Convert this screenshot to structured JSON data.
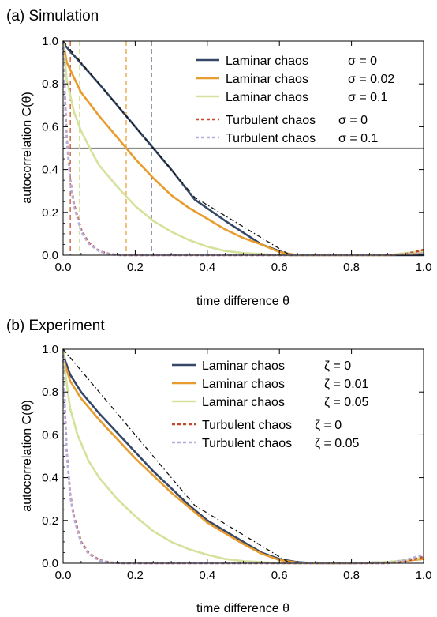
{
  "chart_data": [
    {
      "type": "line",
      "title": "(a) Simulation",
      "xlabel": "time difference θ",
      "ylabel": "autocorrelation C(θ)",
      "xlim": [
        0,
        1
      ],
      "ylim": [
        0,
        1
      ],
      "x_ticks": [
        "0.0",
        "0.2",
        "0.4",
        "0.6",
        "0.8",
        "1.0"
      ],
      "y_ticks": [
        "0.0",
        "0.2",
        "0.4",
        "0.6",
        "0.8",
        "1.0"
      ],
      "param_symbol": "σ",
      "hline": 0.5,
      "vlines": [
        {
          "x": 0.02,
          "color": "#c1441e"
        },
        {
          "x": 0.045,
          "color": "#d6e29a"
        },
        {
          "x": 0.175,
          "color": "#e69a28"
        },
        {
          "x": 0.245,
          "color": "#3a4a6b"
        }
      ],
      "reference": {
        "x": [
          0,
          0.365,
          0.63
        ],
        "y": [
          1,
          0.27,
          0
        ]
      },
      "series": [
        {
          "name": "Laminar chaos",
          "param": "σ = 0",
          "color": "#354869",
          "dash": "",
          "x": [
            0,
            0.1,
            0.2,
            0.3,
            0.365,
            0.45,
            0.55,
            0.63,
            0.7,
            0.8,
            0.9,
            1.0
          ],
          "y": [
            0.99,
            0.8,
            0.6,
            0.4,
            0.26,
            0.16,
            0.05,
            0.0,
            0.0,
            0.0,
            0.0,
            0.0
          ]
        },
        {
          "name": "Laminar chaos",
          "param": "σ = 0.02",
          "color": "#e89c2d",
          "dash": "",
          "x": [
            0,
            0.01,
            0.05,
            0.1,
            0.15,
            0.2,
            0.25,
            0.3,
            0.35,
            0.4,
            0.45,
            0.5,
            0.55,
            0.6,
            0.65,
            0.7,
            0.8,
            0.9,
            1.0
          ],
          "y": [
            1.0,
            0.9,
            0.76,
            0.65,
            0.55,
            0.45,
            0.36,
            0.28,
            0.22,
            0.17,
            0.12,
            0.08,
            0.05,
            0.015,
            0.0,
            0.0,
            0.0,
            0.0,
            0.01
          ]
        },
        {
          "name": "Laminar chaos",
          "param": "σ = 0.1",
          "color": "#d4e29b",
          "dash": "",
          "x": [
            0,
            0.01,
            0.03,
            0.05,
            0.08,
            0.1,
            0.15,
            0.2,
            0.25,
            0.3,
            0.35,
            0.4,
            0.45,
            0.5,
            0.55,
            0.6,
            0.7,
            0.8,
            0.9,
            1.0
          ],
          "y": [
            1.0,
            0.82,
            0.67,
            0.58,
            0.48,
            0.42,
            0.32,
            0.23,
            0.16,
            0.11,
            0.07,
            0.04,
            0.02,
            0.01,
            0.005,
            0.0,
            0.0,
            0.0,
            0.0,
            0.02
          ]
        },
        {
          "name": "Turbulent chaos",
          "param": "σ = 0",
          "color": "#c8462a",
          "dash": "4,3",
          "x": [
            0,
            0.005,
            0.01,
            0.02,
            0.03,
            0.05,
            0.07,
            0.1,
            0.13,
            0.16,
            0.2,
            0.3,
            0.5,
            0.7,
            0.9,
            0.95,
            1.0
          ],
          "y": [
            1.0,
            0.75,
            0.55,
            0.35,
            0.24,
            0.12,
            0.06,
            0.02,
            0.005,
            0.0,
            0.0,
            0.0,
            0.0,
            0.0,
            0.0,
            0.005,
            0.025
          ]
        },
        {
          "name": "Turbulent chaos",
          "param": "σ = 0.1",
          "color": "#b3aee0",
          "dash": "4,3",
          "x": [
            0,
            0.005,
            0.01,
            0.02,
            0.03,
            0.05,
            0.07,
            0.1,
            0.13,
            0.16,
            0.2,
            0.3,
            0.5,
            0.7,
            0.9,
            1.0
          ],
          "y": [
            1.0,
            0.74,
            0.54,
            0.34,
            0.23,
            0.11,
            0.055,
            0.018,
            0.004,
            0.0,
            0.0,
            0.0,
            0.0,
            0.0,
            0.0,
            0.01
          ]
        }
      ]
    },
    {
      "type": "line",
      "title": "(b) Experiment",
      "xlabel": "time difference θ",
      "ylabel": "autocorrelation C(θ)",
      "xlim": [
        0,
        1
      ],
      "ylim": [
        0,
        1
      ],
      "x_ticks": [
        "0.0",
        "0.2",
        "0.4",
        "0.6",
        "0.8",
        "1.0"
      ],
      "y_ticks": [
        "0.0",
        "0.2",
        "0.4",
        "0.6",
        "0.8",
        "1.0"
      ],
      "param_symbol": "ζ",
      "reference": {
        "x": [
          0,
          0.365,
          0.63
        ],
        "y": [
          1,
          0.27,
          0
        ]
      },
      "series": [
        {
          "name": "Laminar chaos",
          "param": "ζ = 0",
          "color": "#354869",
          "dash": "",
          "x": [
            0,
            0.005,
            0.02,
            0.05,
            0.1,
            0.15,
            0.2,
            0.25,
            0.3,
            0.35,
            0.4,
            0.45,
            0.5,
            0.55,
            0.6,
            0.65,
            0.7,
            0.8,
            0.9,
            1.0
          ],
          "y": [
            1.0,
            0.95,
            0.88,
            0.8,
            0.7,
            0.61,
            0.52,
            0.43,
            0.35,
            0.27,
            0.2,
            0.15,
            0.1,
            0.05,
            0.02,
            0.005,
            0.0,
            0.0,
            0.005,
            0.02
          ]
        },
        {
          "name": "Laminar chaos",
          "param": "ζ = 0.01",
          "color": "#e89c2d",
          "dash": "",
          "x": [
            0,
            0.005,
            0.02,
            0.05,
            0.1,
            0.15,
            0.2,
            0.25,
            0.3,
            0.35,
            0.4,
            0.45,
            0.5,
            0.55,
            0.6,
            0.65,
            0.7,
            0.8,
            0.9,
            1.0
          ],
          "y": [
            1.0,
            0.93,
            0.85,
            0.77,
            0.67,
            0.58,
            0.49,
            0.41,
            0.33,
            0.26,
            0.19,
            0.14,
            0.09,
            0.045,
            0.015,
            0.003,
            0.0,
            0.0,
            0.004,
            0.02
          ]
        },
        {
          "name": "Laminar chaos",
          "param": "ζ = 0.05",
          "color": "#d4e29b",
          "dash": "",
          "x": [
            0,
            0.005,
            0.02,
            0.04,
            0.07,
            0.1,
            0.15,
            0.2,
            0.25,
            0.3,
            0.35,
            0.4,
            0.45,
            0.5,
            0.55,
            0.6,
            0.7,
            0.8,
            0.9,
            1.0
          ],
          "y": [
            1.0,
            0.9,
            0.72,
            0.6,
            0.48,
            0.4,
            0.3,
            0.22,
            0.15,
            0.1,
            0.065,
            0.04,
            0.02,
            0.01,
            0.005,
            0.0,
            0.0,
            0.0,
            0.005,
            0.025
          ]
        },
        {
          "name": "Turbulent chaos",
          "param": "ζ = 0",
          "color": "#c8462a",
          "dash": "4,3",
          "x": [
            0,
            0.005,
            0.01,
            0.02,
            0.03,
            0.05,
            0.07,
            0.1,
            0.13,
            0.16,
            0.2,
            0.3,
            0.5,
            0.7,
            0.9,
            0.95,
            1.0
          ],
          "y": [
            1.0,
            0.72,
            0.52,
            0.32,
            0.22,
            0.1,
            0.05,
            0.015,
            0.004,
            0.0,
            0.0,
            0.0,
            0.0,
            0.0,
            0.0,
            0.01,
            0.03
          ]
        },
        {
          "name": "Turbulent chaos",
          "param": "ζ = 0.05",
          "color": "#b3aee0",
          "dash": "4,3",
          "x": [
            0,
            0.005,
            0.01,
            0.02,
            0.03,
            0.05,
            0.07,
            0.1,
            0.13,
            0.16,
            0.2,
            0.3,
            0.5,
            0.7,
            0.9,
            0.95,
            1.0
          ],
          "y": [
            1.0,
            0.71,
            0.51,
            0.31,
            0.21,
            0.095,
            0.045,
            0.013,
            0.003,
            0.0,
            0.0,
            0.0,
            0.0,
            0.0,
            0.0,
            0.015,
            0.04
          ]
        }
      ]
    }
  ]
}
